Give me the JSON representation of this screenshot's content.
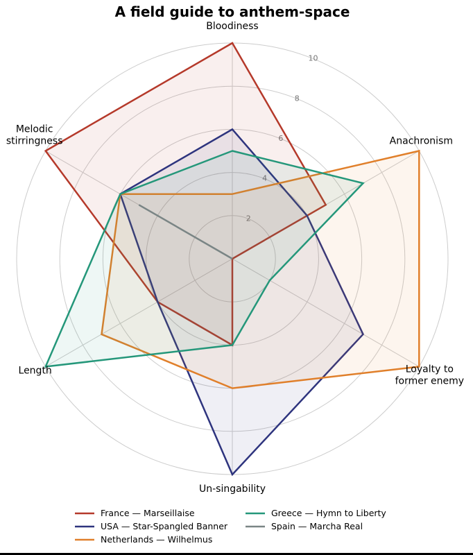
{
  "chart_data": {
    "type": "radar",
    "title": "A field guide to anthem-space",
    "axes": [
      "Bloodiness",
      "Anachronism",
      "Loyalty to\nformer enemy",
      "Un-singability",
      "Length",
      "Melodic\nstirringness"
    ],
    "rlim": [
      0,
      10
    ],
    "rticks": [
      2,
      4,
      6,
      8,
      10
    ],
    "grid": true,
    "legend_position": "bottom",
    "series": [
      {
        "name": "France — Marseillaise",
        "color": "#b5392a",
        "values": [
          10,
          5,
          0,
          4,
          4,
          10
        ]
      },
      {
        "name": "USA — Star-Spangled Banner",
        "color": "#2e347e",
        "values": [
          6,
          4,
          7,
          10,
          4,
          6
        ]
      },
      {
        "name": "Netherlands — Wilhelmus",
        "color": "#e07f2a",
        "values": [
          3,
          10,
          10,
          6,
          7,
          6
        ]
      },
      {
        "name": "Greece — Hymn to Liberty",
        "color": "#24977a",
        "values": [
          5,
          7,
          2,
          4,
          10,
          6
        ]
      },
      {
        "name": "Spain — Marcha Real",
        "color": "#7a8585",
        "values": [
          0,
          0,
          0,
          0,
          0,
          5
        ]
      }
    ]
  }
}
